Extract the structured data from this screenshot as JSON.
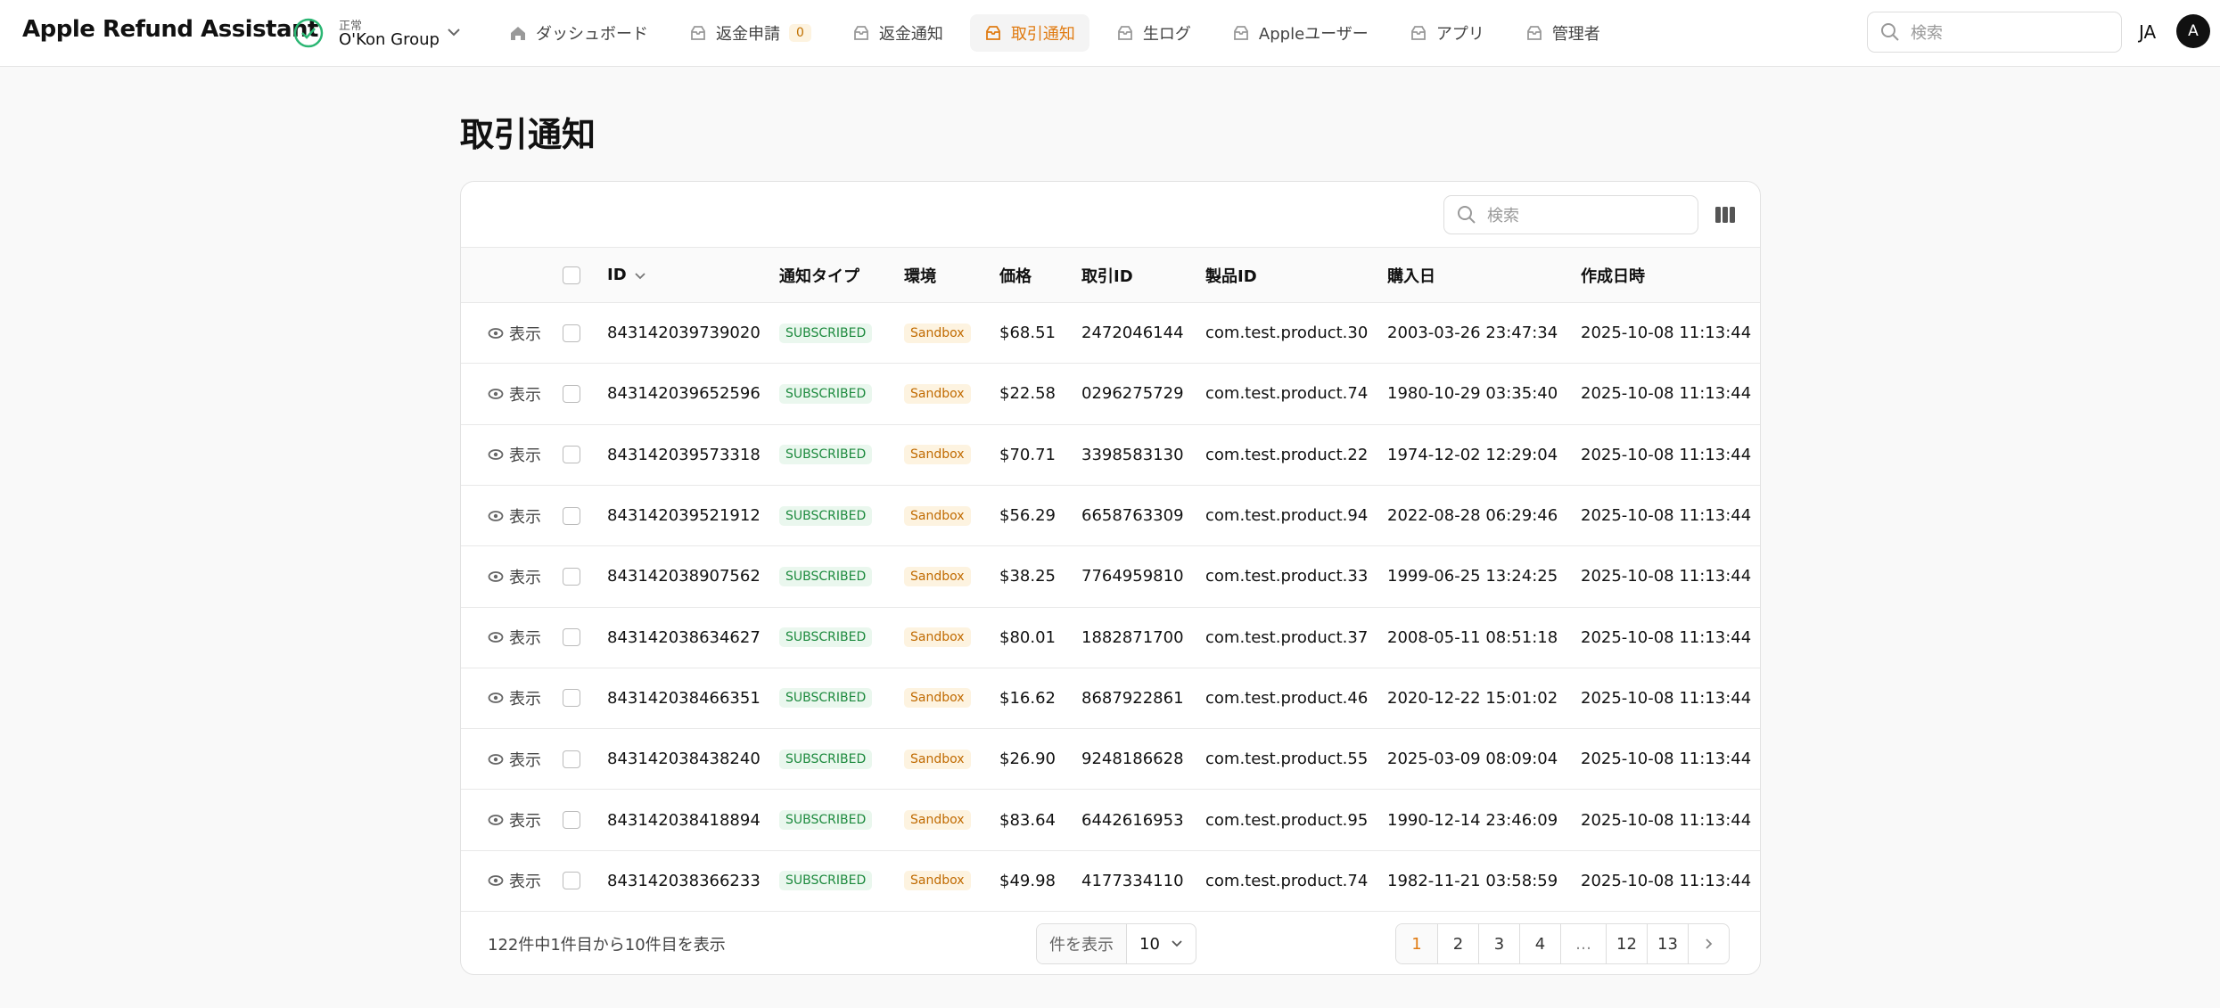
{
  "header": {
    "app_title": "Apple Refund Assistant",
    "status_label": "正常",
    "org": "O'Kon Group",
    "nav": [
      {
        "label": "ダッシュボード"
      },
      {
        "label": "返金申請",
        "badge": 0
      },
      {
        "label": "返金通知"
      },
      {
        "label": "取引通知",
        "active": true
      },
      {
        "label": "生ログ"
      },
      {
        "label": "Appleユーザー"
      },
      {
        "label": "アプリ"
      },
      {
        "label": "管理者"
      }
    ],
    "search_placeholder": "検索",
    "lang": "JA",
    "avatar": "A"
  },
  "page_title": "取引通知",
  "table": {
    "search_placeholder": "検索",
    "columns": [
      "ID",
      "通知タイプ",
      "環境",
      "価格",
      "取引ID",
      "製品ID",
      "購入日",
      "作成日時"
    ],
    "rows": [
      [
        "表示",
        "843142039739020",
        "SUBSCRIBED",
        "Sandbox",
        "$68.51",
        "2472046144",
        "com.test.product.30",
        "2003-03-26 23:47:34",
        "2025-10-08 11:13:44"
      ],
      [
        "表示",
        "843142039652596",
        "SUBSCRIBED",
        "Sandbox",
        "$22.58",
        "0296275729",
        "com.test.product.74",
        "1980-10-29 03:35:40",
        "2025-10-08 11:13:44"
      ],
      [
        "表示",
        "843142039573318",
        "SUBSCRIBED",
        "Sandbox",
        "$70.71",
        "3398583130",
        "com.test.product.22",
        "1974-12-02 12:29:04",
        "2025-10-08 11:13:44"
      ],
      [
        "表示",
        "843142039521912",
        "SUBSCRIBED",
        "Sandbox",
        "$56.29",
        "6658763309",
        "com.test.product.94",
        "2022-08-28 06:29:46",
        "2025-10-08 11:13:44"
      ],
      [
        "表示",
        "843142038907562",
        "SUBSCRIBED",
        "Sandbox",
        "$38.25",
        "7764959810",
        "com.test.product.33",
        "1999-06-25 13:24:25",
        "2025-10-08 11:13:44"
      ],
      [
        "表示",
        "843142038634627",
        "SUBSCRIBED",
        "Sandbox",
        "$80.01",
        "1882871700",
        "com.test.product.37",
        "2008-05-11 08:51:18",
        "2025-10-08 11:13:44"
      ],
      [
        "表示",
        "843142038466351",
        "SUBSCRIBED",
        "Sandbox",
        "$16.62",
        "8687922861",
        "com.test.product.46",
        "2020-12-22 15:01:02",
        "2025-10-08 11:13:44"
      ],
      [
        "表示",
        "843142038438240",
        "SUBSCRIBED",
        "Sandbox",
        "$26.90",
        "9248186628",
        "com.test.product.55",
        "2025-03-09 08:09:04",
        "2025-10-08 11:13:44"
      ],
      [
        "表示",
        "843142038418894",
        "SUBSCRIBED",
        "Sandbox",
        "$83.64",
        "6442616953",
        "com.test.product.95",
        "1990-12-14 23:46:09",
        "2025-10-08 11:13:44"
      ],
      [
        "表示",
        "843142038366233",
        "SUBSCRIBED",
        "Sandbox",
        "$49.98",
        "4177334110",
        "com.test.product.74",
        "1982-11-21 03:58:59",
        "2025-10-08 11:13:44"
      ]
    ],
    "footer": {
      "summary": "122件中1件目から10件目を表示",
      "per_page_label": "件を表示",
      "per_page": "10",
      "pages": [
        "1",
        "2",
        "3",
        "4",
        "…",
        "12",
        "13"
      ]
    }
  }
}
